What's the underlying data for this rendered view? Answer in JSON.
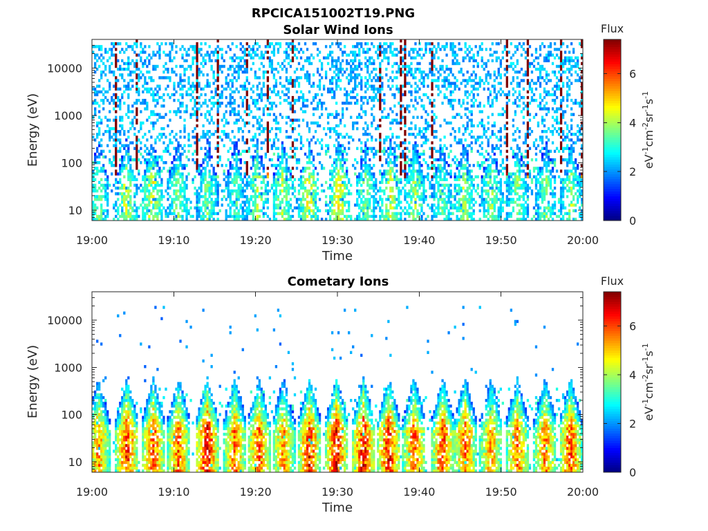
{
  "figure_title": "RPCICA151002T19.PNG",
  "colorbar": {
    "title": "Flux",
    "label_base": "eV",
    "label_parts": [
      {
        "t": "eV",
        "sup": false
      },
      {
        "t": "-1",
        "sup": true
      },
      {
        "t": "cm",
        "sup": false
      },
      {
        "t": "-2",
        "sup": true
      },
      {
        "t": "sr",
        "sup": false
      },
      {
        "t": "-1",
        "sup": true
      },
      {
        "t": "s",
        "sup": false
      },
      {
        "t": "-1",
        "sup": true
      }
    ],
    "colormap": "jet",
    "range": [
      0,
      7.4
    ]
  },
  "chart_data": [
    {
      "type": "heatmap",
      "title": "Solar Wind Ions",
      "xlabel": "Time",
      "ylabel": "Energy (eV)",
      "x_ticks": [
        "19:00",
        "19:10",
        "19:20",
        "19:30",
        "19:40",
        "19:50",
        "20:00"
      ],
      "y_ticks": [
        "10",
        "100",
        "1000",
        "10000"
      ],
      "y_scale": "log",
      "xlim_min": [
        0,
        60
      ],
      "ylim": [
        6,
        40000
      ],
      "colorbar_ticks": [
        "0",
        "2",
        "4",
        "6"
      ],
      "color_range": [
        0,
        7.4
      ],
      "bursts": [
        {
          "t": 0.8,
          "flux": 3.8
        },
        {
          "t": 4.2,
          "flux": 4.3
        },
        {
          "t": 7.4,
          "flux": 4.6
        },
        {
          "t": 10.5,
          "flux": 3.9
        },
        {
          "t": 14.1,
          "flux": 3.7
        },
        {
          "t": 17.6,
          "flux": 3.5
        },
        {
          "t": 20.2,
          "flux": 4.3
        },
        {
          "t": 23.3,
          "flux": 4.2
        },
        {
          "t": 26.5,
          "flux": 4.7
        },
        {
          "t": 30.2,
          "flux": 4.8
        },
        {
          "t": 33.5,
          "flux": 3.9
        },
        {
          "t": 36.5,
          "flux": 4.5
        },
        {
          "t": 39.5,
          "flux": 4.1
        },
        {
          "t": 42.8,
          "flux": 3.6
        },
        {
          "t": 45.5,
          "flux": 4.2
        },
        {
          "t": 48.8,
          "flux": 4.0
        },
        {
          "t": 52.0,
          "flux": 3.9
        },
        {
          "t": 55.5,
          "flux": 3.8
        },
        {
          "t": 58.6,
          "flux": 4.1
        }
      ],
      "background": "sparse flux 1.8-3.0 across 30-40000 eV"
    },
    {
      "type": "heatmap",
      "title": "Cometary Ions",
      "xlabel": "Time",
      "ylabel": "Energy (eV)",
      "x_ticks": [
        "19:00",
        "19:10",
        "19:20",
        "19:30",
        "19:40",
        "19:50",
        "20:00"
      ],
      "y_ticks": [
        "10",
        "100",
        "1000",
        "10000"
      ],
      "y_scale": "log",
      "xlim_min": [
        0,
        60
      ],
      "ylim": [
        6,
        40000
      ],
      "colorbar_ticks": [
        "0",
        "2",
        "4",
        "6"
      ],
      "color_range": [
        0,
        7.4
      ],
      "bursts": [
        {
          "t": 0.8,
          "flux": 5.6
        },
        {
          "t": 4.3,
          "flux": 6.3
        },
        {
          "t": 7.5,
          "flux": 6.1
        },
        {
          "t": 10.6,
          "flux": 6.0
        },
        {
          "t": 14.1,
          "flux": 6.8
        },
        {
          "t": 17.5,
          "flux": 5.9
        },
        {
          "t": 20.4,
          "flux": 6.0
        },
        {
          "t": 23.4,
          "flux": 5.5
        },
        {
          "t": 26.6,
          "flux": 6.4
        },
        {
          "t": 29.9,
          "flux": 6.6
        },
        {
          "t": 33.2,
          "flux": 6.6
        },
        {
          "t": 36.3,
          "flux": 6.5
        },
        {
          "t": 39.4,
          "flux": 6.0
        },
        {
          "t": 42.9,
          "flux": 6.2
        },
        {
          "t": 45.6,
          "flux": 6.0
        },
        {
          "t": 48.8,
          "flux": 5.6
        },
        {
          "t": 52.0,
          "flux": 5.8
        },
        {
          "t": 55.4,
          "flux": 5.8
        },
        {
          "t": 58.5,
          "flux": 6.2
        }
      ],
      "background": "very sparse flux 1.5-2.5 above 1000 eV"
    }
  ]
}
